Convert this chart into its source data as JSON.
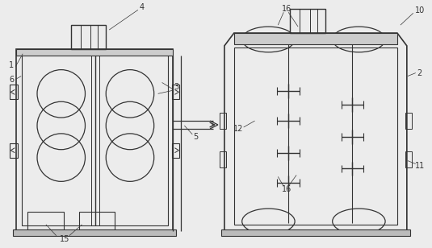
{
  "bg_color": "#ececec",
  "line_color": "#333333",
  "base_lw": 1.0,
  "fig_w": 5.35,
  "fig_h": 3.08
}
